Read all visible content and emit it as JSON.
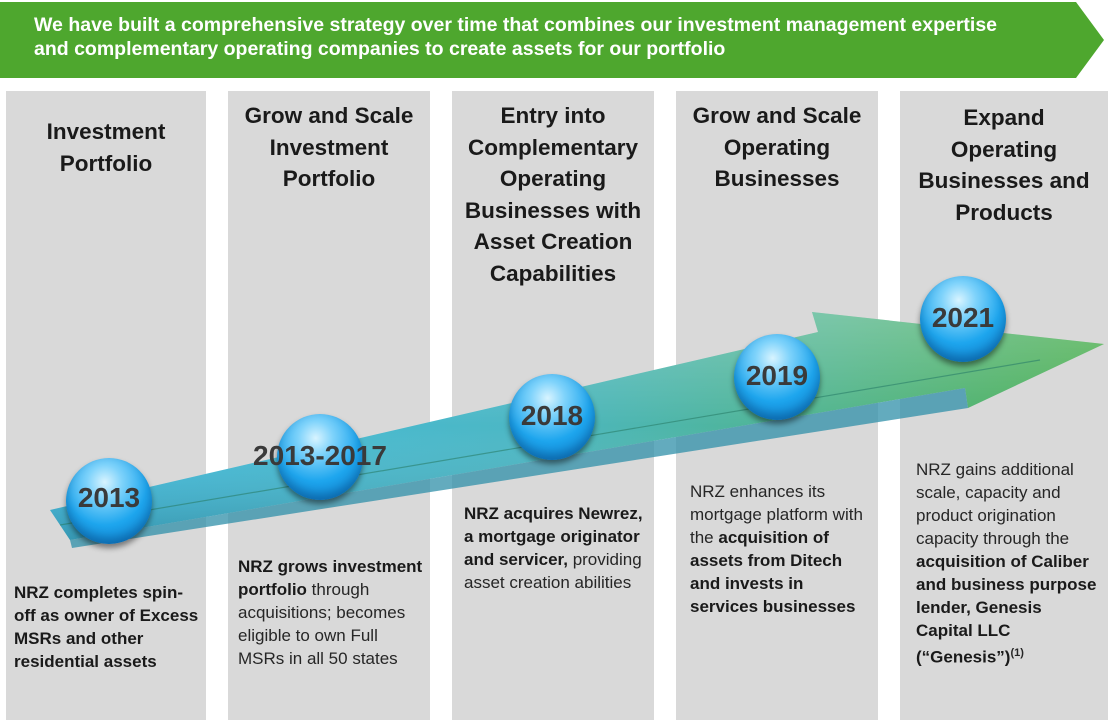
{
  "banner": {
    "text": "We have built a comprehensive strategy over time that combines our investment management expertise and complementary operating companies to create assets for our portfolio",
    "color": "#4ea72e"
  },
  "columns": [
    {
      "title": [
        "Investment",
        "Portfolio"
      ],
      "body": [
        {
          "text": "NRZ completes spin-off as owner of Excess MSRs and other residential assets",
          "bold": true
        }
      ]
    },
    {
      "title": [
        "Grow and Scale",
        "Investment",
        "Portfolio"
      ],
      "body": [
        {
          "text": "NRZ grows investment portfolio",
          "bold": true
        },
        {
          "text": " through acquisitions; becomes eligible to own Full MSRs in all 50 states",
          "bold": false
        }
      ]
    },
    {
      "title": [
        "Entry into",
        "Complementary",
        "Operating",
        "Businesses with",
        "Asset Creation",
        "Capabilities"
      ],
      "body": [
        {
          "text": "NRZ acquires Newrez, a mortgage originator and servicer,",
          "bold": true
        },
        {
          "text": " providing asset creation abilities",
          "bold": false
        }
      ]
    },
    {
      "title": [
        "Grow and Scale",
        "Operating",
        "Businesses"
      ],
      "body": [
        {
          "text": "NRZ enhances its mortgage platform with the ",
          "bold": false
        },
        {
          "text": "acquisition of assets from Ditech and invests in services businesses",
          "bold": true
        }
      ]
    },
    {
      "title": [
        "Expand",
        "Operating",
        "Businesses and",
        "Products"
      ],
      "body": [
        {
          "text": "NRZ gains additional scale, capacity and product origination capacity through the ",
          "bold": false
        },
        {
          "text": "acquisition of Caliber and business purpose lender, Genesis Capital LLC (“Genesis”)",
          "bold": true
        }
      ],
      "footnote": "(1)"
    }
  ],
  "years": [
    "2013",
    "2013-2017",
    "2018",
    "2019",
    "2021"
  ],
  "colors": {
    "column_bg": "#d9d9d9",
    "arrow_start": "#42bde0",
    "arrow_end": "#4caf50",
    "bubble": "#1ea6ee"
  }
}
